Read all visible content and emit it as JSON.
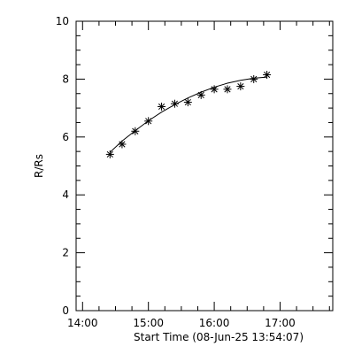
{
  "chart_data": {
    "type": "scatter",
    "title": "",
    "xlabel": "Start Time (08-Jun-25 13:54:07)",
    "ylabel": "R/Rs",
    "xlim": [
      "13:54:07",
      "17:48:00"
    ],
    "ylim": [
      0,
      10
    ],
    "x_tick_labels": [
      "14:00",
      "15:00",
      "16:00",
      "17:00"
    ],
    "y_tick_labels": [
      "0",
      "2",
      "4",
      "6",
      "8",
      "10"
    ],
    "series": [
      {
        "marker": "asterisk",
        "x": [
          "14:25",
          "14:36",
          "14:48",
          "15:00",
          "15:12",
          "15:24",
          "15:36",
          "15:48",
          "16:00",
          "16:12",
          "16:24",
          "16:36",
          "16:48"
        ],
        "y": [
          5.4,
          5.75,
          6.2,
          6.55,
          7.05,
          7.15,
          7.2,
          7.45,
          7.65,
          7.65,
          7.75,
          8.0,
          8.15
        ]
      }
    ],
    "fit_curve": {
      "x": [
        "14:25",
        "14:36",
        "14:48",
        "15:00",
        "15:12",
        "15:24",
        "15:36",
        "15:48",
        "16:00",
        "16:12",
        "16:24",
        "16:36",
        "16:48"
      ],
      "y": [
        5.47,
        5.86,
        6.22,
        6.56,
        6.86,
        7.12,
        7.35,
        7.55,
        7.72,
        7.86,
        7.96,
        8.03,
        8.07
      ]
    },
    "grid": false,
    "colors": {
      "axes": "#000000",
      "markers": "#000000",
      "fit_line": "#000000",
      "background": "#ffffff"
    }
  }
}
